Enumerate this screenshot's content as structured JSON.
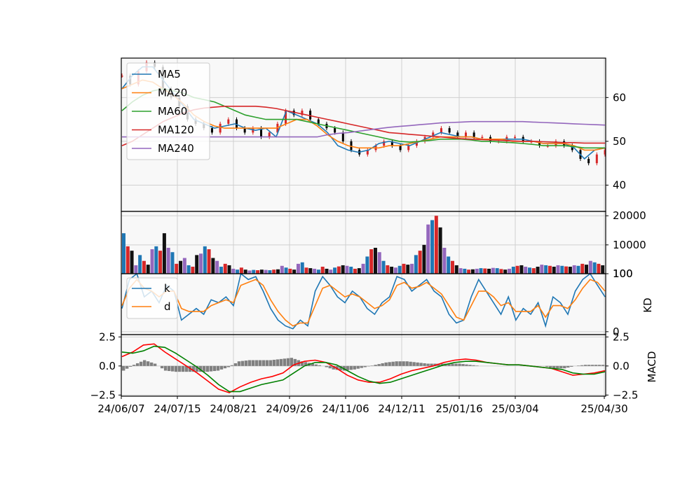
{
  "chart_data": [
    {
      "panel": "price",
      "type": "line",
      "x_tick_labels": [
        "24/06/07",
        "24/07/15",
        "24/08/21",
        "24/09/26",
        "24/11/06",
        "24/12/11",
        "25/01/16",
        "25/03/04",
        "25/04/30"
      ],
      "y_ticks": [
        40,
        50,
        60
      ],
      "ylim": [
        34,
        69
      ],
      "grid": true,
      "legend": {
        "position": "top-left",
        "entries": [
          "MA5",
          "MA20",
          "MA60",
          "MA120",
          "MA240"
        ]
      },
      "series": [
        {
          "name": "MA5",
          "color": "#1f77b4",
          "values": [
            62,
            65,
            67,
            67,
            64,
            61,
            58,
            55,
            54,
            53,
            53.5,
            54,
            53,
            52.5,
            53,
            51,
            57,
            56,
            55,
            54,
            52,
            49,
            48,
            47.5,
            48,
            49.5,
            50,
            49.5,
            49,
            50,
            51,
            52,
            51.5,
            51,
            51,
            50.5,
            50.5,
            50.5,
            50.5,
            50.5,
            50,
            49.5,
            49.5,
            49.5,
            48.5,
            46,
            48,
            48.5
          ]
        },
        {
          "name": "MA20",
          "color": "#ff7f0e",
          "values": [
            62,
            63,
            64,
            63.5,
            62,
            60.5,
            58.5,
            56,
            54.5,
            53.5,
            53,
            53,
            53,
            53,
            53,
            53,
            54,
            55,
            55,
            53.5,
            51.5,
            50,
            49,
            48.5,
            48.5,
            48.5,
            49,
            49,
            49.5,
            50,
            50.5,
            51,
            51,
            51,
            51,
            50.5,
            50.5,
            50.5,
            50,
            50,
            50,
            49.5,
            49.5,
            49.5,
            49,
            48,
            48,
            48.5
          ]
        },
        {
          "name": "MA60",
          "color": "#2ca02c",
          "values": [
            57,
            59,
            60.5,
            61.5,
            62,
            61.5,
            61,
            60,
            59.5,
            59,
            58,
            57,
            56,
            55.5,
            55,
            55,
            55,
            55,
            54.5,
            54,
            53.5,
            53,
            52.5,
            52,
            51.5,
            51,
            50.5,
            50,
            49.8,
            50,
            50.2,
            50.5,
            50.5,
            50.5,
            50.3,
            50,
            50,
            49.8,
            49.7,
            49.5,
            49.3,
            49,
            49,
            49,
            48.8,
            48.5,
            48.5,
            48.5
          ]
        },
        {
          "name": "MA120",
          "color": "#d62728",
          "values": [
            49,
            50,
            51.5,
            53,
            54.5,
            55.5,
            56.5,
            57.2,
            57.6,
            57.8,
            58,
            58,
            58,
            58,
            57.8,
            57.5,
            57,
            56.5,
            56,
            55.5,
            55,
            54.5,
            54,
            53.5,
            53,
            52.5,
            52,
            51.8,
            51.6,
            51.4,
            51.2,
            51,
            50.8,
            50.6,
            50.5,
            50.4,
            50.3,
            50.2,
            50.1,
            50,
            50,
            49.9,
            49.8,
            49.7,
            49.7,
            49.6,
            49.6,
            49.6
          ]
        },
        {
          "name": "MA240",
          "color": "#9467bd",
          "values": [
            51,
            51,
            51,
            51,
            51,
            51,
            51,
            51,
            51,
            51,
            51,
            51,
            51,
            51,
            51,
            51,
            51,
            51,
            51,
            51,
            51.5,
            51.8,
            52,
            52.3,
            52.6,
            52.9,
            53.2,
            53.4,
            53.6,
            53.8,
            54,
            54.2,
            54.3,
            54.4,
            54.5,
            54.5,
            54.5,
            54.5,
            54.5,
            54.5,
            54.4,
            54.3,
            54.2,
            54.1,
            54,
            53.9,
            53.8,
            53.7
          ]
        }
      ],
      "candles": [
        65,
        63,
        66,
        68,
        67,
        62,
        60,
        58,
        55,
        54,
        53,
        52,
        54,
        55,
        53,
        52,
        53,
        51,
        52,
        54,
        57,
        56,
        57,
        55,
        54,
        53,
        52,
        50,
        48,
        47,
        48,
        49,
        50,
        49,
        48,
        49,
        50,
        51,
        52,
        53,
        52,
        51,
        52,
        51,
        51,
        50,
        50,
        51,
        51,
        50,
        50,
        49,
        49,
        50,
        49,
        48,
        46,
        45,
        47,
        48
      ]
    },
    {
      "panel": "volume",
      "type": "bar",
      "y_ticks": [
        100,
        10000,
        20000
      ],
      "ylim": [
        100,
        21500
      ],
      "values": [
        14000,
        9500,
        8000,
        3000,
        6500,
        4500,
        3200,
        8500,
        9500,
        8000,
        14000,
        9000,
        7500,
        3500,
        4500,
        5500,
        3000,
        2500,
        6500,
        7000,
        9500,
        8500,
        5500,
        4500,
        2500,
        3500,
        3000,
        1800,
        1500,
        2200,
        1500,
        1200,
        1400,
        1300,
        1500,
        1400,
        1300,
        1500,
        1600,
        2800,
        2200,
        1800,
        1500,
        3500,
        4000,
        2200,
        2000,
        1800,
        1500,
        2500,
        1800,
        1500,
        2200,
        2600,
        3000,
        2800,
        2500,
        1800,
        2000,
        3500,
        6000,
        8500,
        9000,
        7500,
        4500,
        3000,
        2500,
        2200,
        2800,
        3500,
        3200,
        3500,
        6500,
        8000,
        10000,
        17000,
        18500,
        20000,
        16000,
        9000,
        6000,
        4500,
        3000,
        2000,
        1800,
        1500,
        1600,
        1800,
        2000,
        1900,
        1800,
        2100,
        2000,
        1700,
        1500,
        1800,
        2500,
        2800,
        3000,
        2500,
        2200,
        2000,
        2500,
        3200,
        3000,
        2800,
        2500,
        3000,
        2800,
        2600,
        2500,
        3000,
        2800,
        3500,
        3200,
        4500,
        4000,
        3500,
        3000
      ]
    },
    {
      "panel": "KD",
      "type": "line",
      "ylabel": "KD",
      "y_ticks": [
        0,
        100
      ],
      "ylim": [
        -5,
        100
      ],
      "legend": {
        "position": "top-left",
        "entries": [
          "k",
          "d"
        ]
      },
      "series": [
        {
          "name": "k",
          "color": "#1f77b4",
          "values": [
            40,
            90,
            100,
            60,
            70,
            50,
            80,
            70,
            20,
            30,
            40,
            30,
            55,
            50,
            60,
            45,
            100,
            90,
            95,
            70,
            40,
            20,
            10,
            5,
            20,
            10,
            70,
            95,
            80,
            60,
            50,
            70,
            60,
            40,
            30,
            50,
            60,
            95,
            90,
            70,
            80,
            90,
            70,
            60,
            30,
            15,
            20,
            60,
            90,
            70,
            50,
            30,
            60,
            20,
            40,
            30,
            50,
            10,
            60,
            50,
            30,
            70,
            90,
            100,
            80,
            60
          ]
        },
        {
          "name": "d",
          "color": "#ff7f0e",
          "values": [
            45,
            75,
            90,
            75,
            70,
            60,
            70,
            70,
            40,
            35,
            35,
            35,
            45,
            50,
            55,
            50,
            80,
            85,
            90,
            80,
            55,
            35,
            20,
            10,
            15,
            15,
            45,
            75,
            80,
            70,
            60,
            65,
            60,
            50,
            40,
            45,
            55,
            80,
            85,
            75,
            78,
            85,
            75,
            65,
            45,
            25,
            20,
            45,
            70,
            70,
            60,
            45,
            50,
            35,
            35,
            35,
            45,
            25,
            45,
            45,
            40,
            55,
            75,
            90,
            85,
            70
          ]
        }
      ]
    },
    {
      "panel": "MACD",
      "type": "line",
      "ylabel": "MACD",
      "y_ticks": [
        -2.5,
        0.0,
        2.5
      ],
      "ylim": [
        -2.6,
        2.7
      ],
      "series": [
        {
          "color": "#ff0000",
          "values": [
            0.8,
            1.2,
            1.8,
            1.9,
            1.2,
            0.6,
            0.0,
            -0.6,
            -1.3,
            -2.0,
            -2.3,
            -1.8,
            -1.4,
            -1.1,
            -0.9,
            -0.6,
            0.1,
            0.4,
            0.5,
            0.3,
            -0.2,
            -0.8,
            -1.2,
            -1.4,
            -1.4,
            -1.1,
            -0.7,
            -0.4,
            -0.2,
            0.0,
            0.3,
            0.5,
            0.6,
            0.5,
            0.3,
            0.2,
            0.1,
            0.1,
            0.0,
            -0.1,
            -0.2,
            -0.5,
            -0.8,
            -0.7,
            -0.6,
            -0.4
          ]
        },
        {
          "color": "#008000",
          "values": [
            1.2,
            1.1,
            1.3,
            1.7,
            1.6,
            1.1,
            0.5,
            -0.1,
            -0.8,
            -1.6,
            -2.2,
            -2.2,
            -1.9,
            -1.6,
            -1.4,
            -1.2,
            -0.6,
            0.0,
            0.3,
            0.3,
            0.1,
            -0.4,
            -0.9,
            -1.3,
            -1.5,
            -1.4,
            -1.1,
            -0.8,
            -0.5,
            -0.2,
            0.1,
            0.3,
            0.4,
            0.4,
            0.3,
            0.2,
            0.1,
            0.1,
            0.0,
            -0.1,
            -0.2,
            -0.3,
            -0.6,
            -0.7,
            -0.7,
            -0.5
          ]
        }
      ],
      "histogram_color": "#808080"
    }
  ]
}
